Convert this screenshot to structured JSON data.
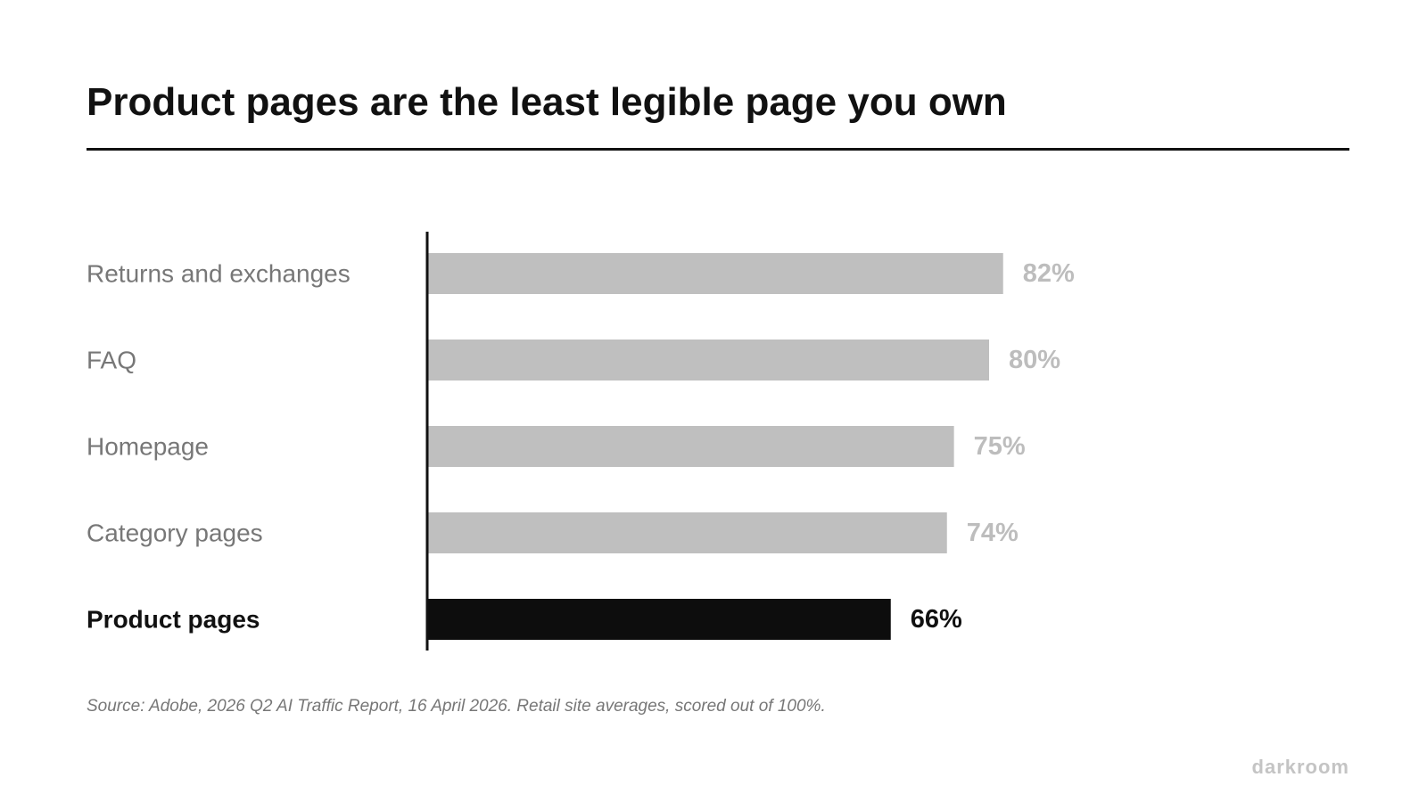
{
  "chart_data": {
    "type": "bar",
    "orientation": "horizontal",
    "title": "Product pages are the least legible page you own",
    "categories": [
      "Returns and exchanges",
      "FAQ",
      "Homepage",
      "Category pages",
      "Product pages"
    ],
    "values": [
      82,
      80,
      75,
      74,
      66
    ],
    "value_labels": [
      "82%",
      "80%",
      "75%",
      "74%",
      "66%"
    ],
    "highlight": "Product pages",
    "xlim": [
      0,
      100
    ],
    "grid": false,
    "colors": {
      "bar": "#bfbfbf",
      "bar_highlight": "#0d0d0d",
      "label": "#777777",
      "label_highlight": "#111111",
      "value": "#bdbdbd",
      "value_highlight": "#111111",
      "axis": "#111111"
    }
  },
  "source_note": "Source: Adobe, 2026 Q2 AI Traffic Report, 16 April 2026. Retail site averages, scored out of 100%.",
  "brand": "darkroom"
}
